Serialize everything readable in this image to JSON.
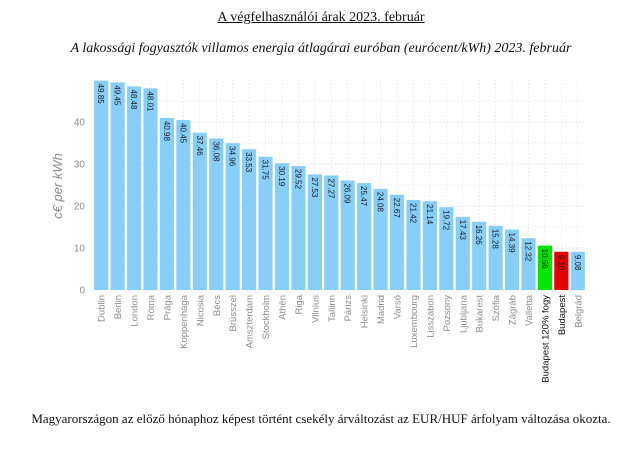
{
  "page": {
    "heading": "A végfelhasználói árak 2023. február",
    "footnote": "Magyarországon az előző hónaphoz képest történt csekély árváltozást az EUR/HUF árfolyam változása okozta."
  },
  "colors": {
    "default_bar": "#87cefa",
    "highlight_green": "#00e600",
    "highlight_red": "#e60000",
    "grid": "#d9d9d9"
  },
  "chart_data": {
    "type": "bar",
    "title": "A lakossági fogyasztók villamos energia átlagárai euróban (eurócent/kWh) 2023. február",
    "xlabel": "",
    "ylabel": "c€ per kWh",
    "ylim": [
      0,
      50
    ],
    "yticks": [
      0,
      10,
      20,
      30,
      40
    ],
    "grid": true,
    "categories": [
      "Dublin",
      "Berlin",
      "London",
      "Róma",
      "Prága",
      "Koppenhága",
      "Nicosia",
      "Bécs",
      "Brüsszel",
      "Amszterdam",
      "Stockholm",
      "Athén",
      "Riga",
      "Vilnius",
      "Tallinn",
      "Párizs",
      "Helsinki",
      "Madrid",
      "Varsó",
      "Luxembourg",
      "Lisszabon",
      "Pozsony",
      "Ljubljana",
      "Bukarest",
      "Szófia",
      "Zágráb",
      "Valletta",
      "Budapest 120% fogy",
      "Budapest",
      "Belgrád"
    ],
    "values": [
      49.85,
      49.45,
      48.48,
      48.01,
      40.98,
      40.45,
      37.46,
      36.08,
      34.96,
      33.53,
      31.75,
      30.19,
      29.52,
      27.53,
      27.27,
      26.09,
      25.47,
      24.08,
      22.67,
      21.42,
      21.14,
      19.72,
      17.43,
      16.26,
      15.28,
      14.39,
      12.32,
      10.56,
      9.1,
      9.08
    ],
    "value_labels": [
      "49.85",
      "49.45",
      "48.48",
      "48.01",
      "40.98",
      "40.45",
      "37.46",
      "36.08",
      "34.96",
      "33.53",
      "31.75",
      "30.19",
      "29.52",
      "27.53",
      "27.27",
      "26.09",
      "25.47",
      "24.08",
      "22.67",
      "21.42",
      "21.14",
      "19.72",
      "17.43",
      "16.26",
      "15.28",
      "14.39",
      "12.32",
      "10.56",
      "9.10",
      "9.08"
    ],
    "highlights": {
      "Budapest 120% fogy": "green",
      "Budapest": "red"
    }
  }
}
